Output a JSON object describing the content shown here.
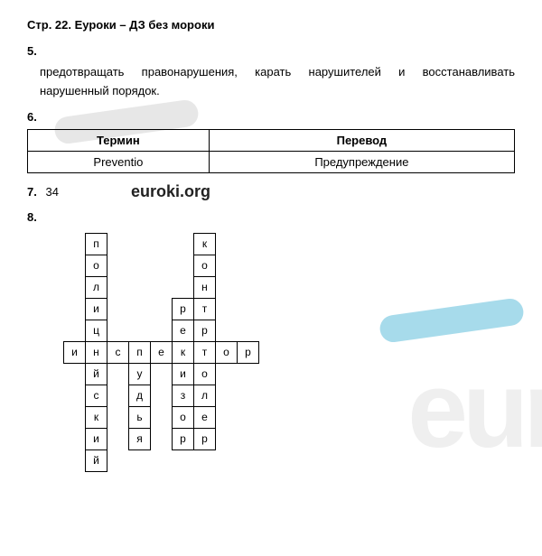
{
  "title": "Стр. 22. Еуроки – ДЗ без мороки",
  "q5": {
    "num": "5.",
    "text": "предотвращать правонарушения, карать нарушителей и восстанавливать нарушенный порядок."
  },
  "q6": {
    "num": "6.",
    "headers": [
      "Термин",
      "Перевод"
    ],
    "row": [
      "Preventio",
      "Предупреждение"
    ]
  },
  "q7": {
    "num": "7.",
    "val": "34",
    "wm": "euroki.org"
  },
  "q8": {
    "num": "8.",
    "grid": [
      [
        null,
        "п",
        null,
        null,
        null,
        null,
        "к",
        null,
        null,
        null
      ],
      [
        null,
        "о",
        null,
        null,
        null,
        null,
        "о",
        null,
        null,
        null
      ],
      [
        null,
        "л",
        null,
        null,
        null,
        null,
        "н",
        null,
        null,
        null
      ],
      [
        null,
        "и",
        null,
        null,
        null,
        "р",
        "т",
        null,
        null,
        null
      ],
      [
        null,
        "ц",
        null,
        null,
        null,
        "е",
        "р",
        null,
        null,
        null
      ],
      [
        "и",
        "н",
        "с",
        "п",
        "е",
        "к",
        "т",
        "о",
        "р",
        null
      ],
      [
        null,
        "й",
        null,
        "у",
        null,
        "и",
        "о",
        null,
        null,
        null
      ],
      [
        null,
        "с",
        null,
        "д",
        null,
        "з",
        "л",
        null,
        null,
        null
      ],
      [
        null,
        "к",
        null,
        "ь",
        null,
        "о",
        "е",
        null,
        null,
        null
      ],
      [
        null,
        "и",
        null,
        "я",
        null,
        "р",
        "р",
        null,
        null,
        null
      ],
      [
        null,
        "й",
        null,
        null,
        null,
        null,
        null,
        null,
        null,
        null
      ]
    ]
  },
  "colors": {
    "swoosh_gray": "#cfcfcf",
    "swoosh_blue": "#4fb8d8",
    "wm_gray": "#d8d8d8"
  }
}
